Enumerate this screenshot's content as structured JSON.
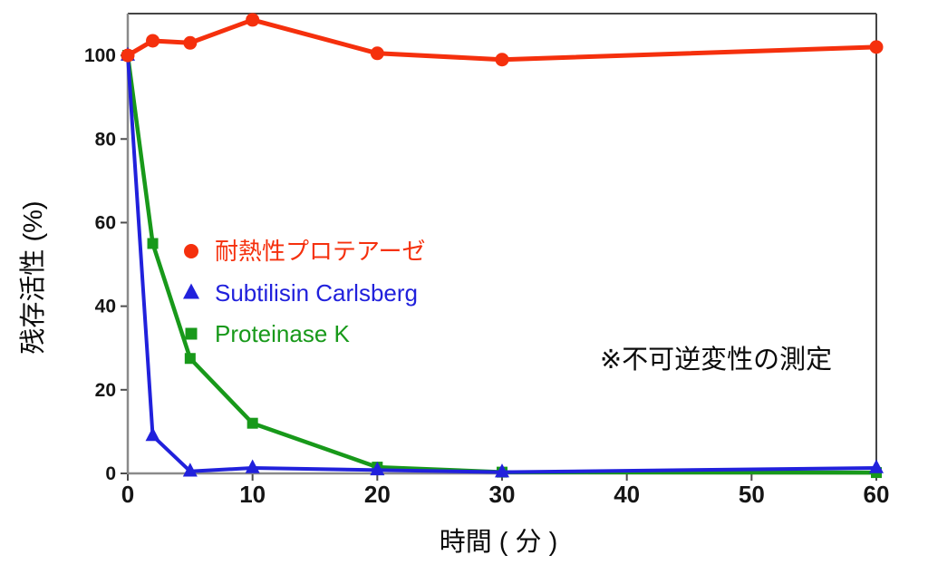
{
  "annotation": {
    "text": "※不可逆変性の測定"
  },
  "axis_titles": {
    "x": "時間 ( 分 )",
    "y": "残存活性 (%)"
  },
  "colors": {
    "plot_border_dark": "#454545",
    "axis_line_gray": "#8a8a8a",
    "tick_mark": "#4d4d4d",
    "tick_text": "#151515"
  },
  "chart_data": {
    "type": "line",
    "x": [
      0,
      2,
      5,
      10,
      20,
      30,
      60
    ],
    "series": [
      {
        "id": "thermostable-protease",
        "name": "耐熱性プロテアーゼ",
        "color": "#f5300d",
        "marker": "circle",
        "line_width": 5,
        "values": [
          100,
          103.5,
          103,
          108.5,
          100.5,
          99,
          102
        ]
      },
      {
        "id": "subtilisin-carlsberg",
        "name": "Subtilisin Carlsberg",
        "color": "#2121dc",
        "marker": "triangle",
        "line_width": 4,
        "values": [
          100,
          9,
          0.5,
          1.3,
          0.8,
          0.3,
          1.3
        ]
      },
      {
        "id": "proteinase-k",
        "name": "Proteinase K",
        "color": "#18991a",
        "marker": "square",
        "line_width": 4.5,
        "values": [
          100,
          55,
          27.5,
          12,
          1.5,
          0.3,
          0.2
        ]
      }
    ],
    "xticks": [
      0,
      10,
      20,
      30,
      40,
      50,
      60
    ],
    "yticks": [
      0,
      20,
      40,
      60,
      80,
      100
    ],
    "xlim": [
      0,
      60
    ],
    "ylim": [
      0,
      110
    ],
    "xlabel": "時間 ( 分 )",
    "ylabel": "残存活性 (%)",
    "grid": false,
    "legend_position": "inside-left",
    "title": ""
  }
}
